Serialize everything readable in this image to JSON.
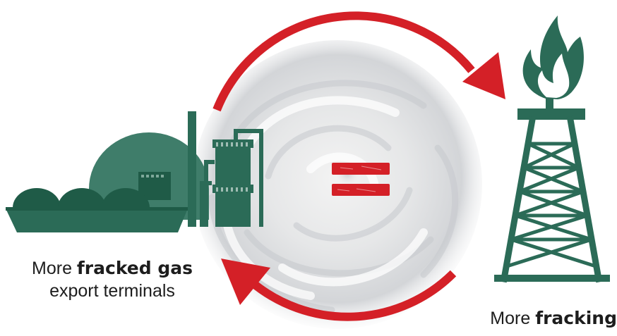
{
  "captions": {
    "left": {
      "prefix": "More ",
      "bold": "fracked gas",
      "line2": "export terminals"
    },
    "right": {
      "prefix": "More ",
      "bold": "fracking"
    }
  },
  "icons": {
    "center": "hurricane-satellite-image",
    "left": "lng-tanker-and-export-terminal-icon",
    "right": "fracking-derrick-with-flame-icon",
    "symbol": "equals-sign-icon",
    "arrows": "cycle-arrow-icon"
  },
  "colors": {
    "arrow_red": "#d42027",
    "icon_green": "#2b6b57",
    "icon_green_dark": "#1f5b47",
    "dome_green": "#3f7d6a"
  }
}
